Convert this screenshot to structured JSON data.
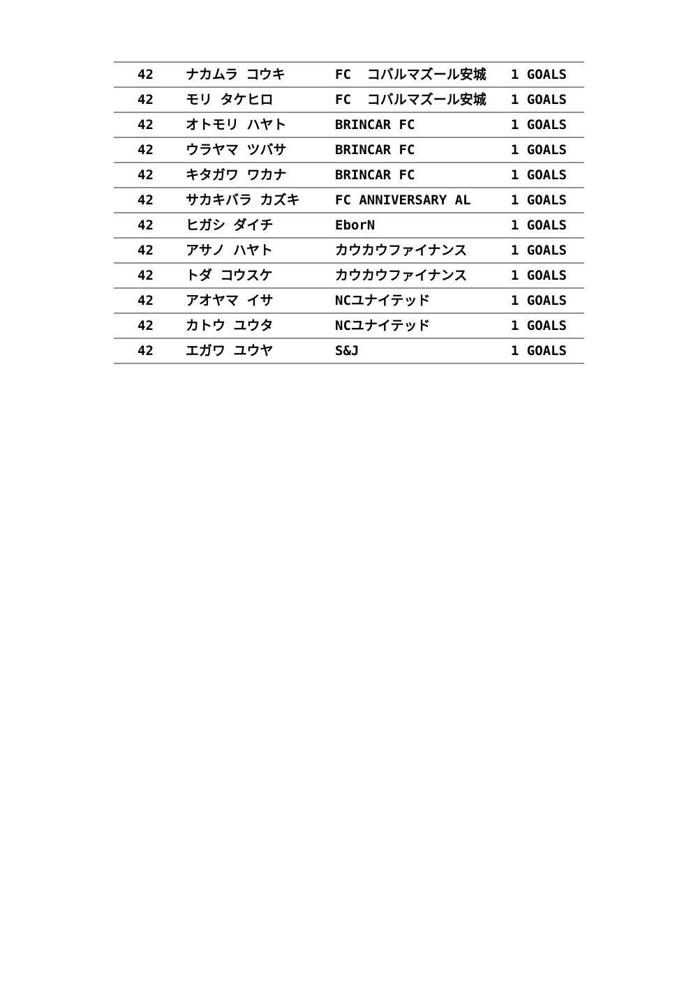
{
  "page": {
    "background": "#ffffff"
  },
  "table": {
    "line_color": "#8f8f8f",
    "text_color": "#000000",
    "columns": [
      "rank",
      "player",
      "team",
      "goals"
    ],
    "rows": [
      {
        "rank": "42",
        "player": "ナカムラ コウキ",
        "team": "FC  コバルマズール安城",
        "goals": "1 GOALS"
      },
      {
        "rank": "42",
        "player": "モリ タケヒロ",
        "team": "FC  コバルマズール安城",
        "goals": "1 GOALS"
      },
      {
        "rank": "42",
        "player": "オトモリ ハヤト",
        "team": "BRINCAR FC",
        "goals": "1 GOALS"
      },
      {
        "rank": "42",
        "player": "ウラヤマ ツバサ",
        "team": "BRINCAR FC",
        "goals": "1 GOALS"
      },
      {
        "rank": "42",
        "player": "キタガワ ワカナ",
        "team": "BRINCAR FC",
        "goals": "1 GOALS"
      },
      {
        "rank": "42",
        "player": "サカキバラ カズキ",
        "team": "FC ANNIVERSARY AL",
        "goals": "1 GOALS"
      },
      {
        "rank": "42",
        "player": "ヒガシ ダイチ",
        "team": "EborN",
        "goals": "1 GOALS"
      },
      {
        "rank": "42",
        "player": "アサノ ハヤト",
        "team": "カウカウファイナンス",
        "goals": "1 GOALS"
      },
      {
        "rank": "42",
        "player": "トダ コウスケ",
        "team": "カウカウファイナンス",
        "goals": "1 GOALS"
      },
      {
        "rank": "42",
        "player": "アオヤマ イサ",
        "team": "NCユナイテッド",
        "goals": "1 GOALS"
      },
      {
        "rank": "42",
        "player": "カトウ ユウタ",
        "team": "NCユナイテッド",
        "goals": "1 GOALS"
      },
      {
        "rank": "42",
        "player": "エガワ ユウヤ",
        "team": "S&J",
        "goals": "1 GOALS"
      }
    ]
  }
}
